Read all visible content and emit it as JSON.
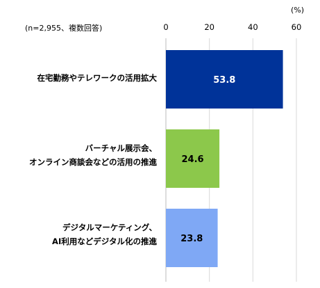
{
  "chart_data": {
    "type": "bar",
    "orientation": "horizontal",
    "unit_label": "(%)",
    "note": "(n=2,955、複数回答)",
    "categories": [
      [
        "在宅勤務やテレワークの活用拡大"
      ],
      [
        "バーチャル展示会、",
        "オンライン商談会などの活用の推進"
      ],
      [
        "デジタルマーケティング、",
        "AI利用などデジタル化の推進"
      ]
    ],
    "values": [
      53.8,
      24.6,
      23.8
    ],
    "value_labels": [
      "53.8",
      "24.6",
      "23.8"
    ],
    "bar_colors": [
      "#003399",
      "#8cc84b",
      "#7fa8f5"
    ],
    "value_label_colors": [
      "#ffffff",
      "#000000",
      "#000000"
    ],
    "xlim": [
      0,
      60
    ],
    "ticks": [
      "0",
      "20",
      "40",
      "60"
    ],
    "grid": true
  }
}
